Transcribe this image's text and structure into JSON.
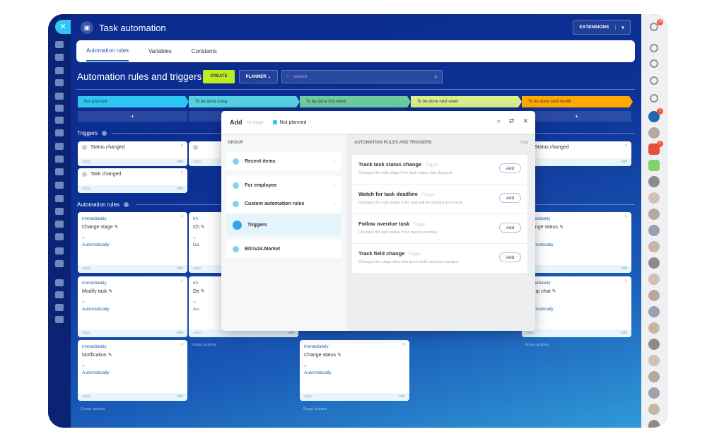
{
  "header": {
    "title": "Task automation",
    "extensions_label": "EXTENSIONS",
    "close_icon": "close-icon"
  },
  "tabs": [
    "Automation rules",
    "Variables",
    "Constants"
  ],
  "toolbar": {
    "heading": "Automation rules and triggers",
    "create": "CREATE",
    "planner": "PLANNER",
    "search_placeholder": "search"
  },
  "stages": [
    {
      "name": "Not planned",
      "color": "#2fc6f6"
    },
    {
      "name": "To be done today",
      "color": "#55d0e0"
    },
    {
      "name": "To be done this week",
      "color": "#6ccc9e"
    },
    {
      "name": "To be done next week",
      "color": "#d9ef8a"
    },
    {
      "name": "To be done next month",
      "color": "#ffa900"
    }
  ],
  "plus": "+",
  "sections": {
    "triggers": "Triggers",
    "rules": "Automation rules"
  },
  "card_labels": {
    "copy": "copy",
    "edit": "edit",
    "to": "to",
    "group_actions": "Group actions"
  },
  "triggers": [
    {
      "col": 0,
      "row": 0,
      "name": "Status changed"
    },
    {
      "col": 0,
      "row": 1,
      "name": "Task changed"
    },
    {
      "col": 1,
      "row": 0,
      "name": ""
    },
    {
      "col": 4,
      "row": 0,
      "name": "Status changed"
    }
  ],
  "rules": [
    {
      "col": 0,
      "row": 0,
      "when": "immediately",
      "action": "Change stage",
      "mode": "Automatically"
    },
    {
      "col": 0,
      "row": 1,
      "when": "immediately",
      "action": "Modify task",
      "mode": "Automatically"
    },
    {
      "col": 0,
      "row": 2,
      "when": "immediately",
      "action": "Notification",
      "mode": "Automatically"
    },
    {
      "col": 1,
      "row": 0,
      "when": "im",
      "action": "Ch",
      "mode": "Da"
    },
    {
      "col": 1,
      "row": 1,
      "when": "im",
      "action": "De",
      "mode": "Au"
    },
    {
      "col": 2,
      "row": 2,
      "when": "immediately",
      "action": "Change status",
      "mode": "Automatically"
    },
    {
      "col": 4,
      "row": 0,
      "when": "immediately",
      "action": "Change status",
      "mode": "Automatically"
    },
    {
      "col": 4,
      "row": 1,
      "when": "immediately",
      "action": "Group chat",
      "mode": "Automatically"
    }
  ],
  "group_actions_rows": {
    "0": 3,
    "1": 2,
    "2": 3,
    "4": 2
  },
  "modal": {
    "add": "Add",
    "to_stage": "to stage",
    "stage": "Not planned",
    "group_label": "GROUP",
    "rules_label": "AUTOMATION RULES AND TRIGGERS",
    "help": "Help",
    "groups": [
      {
        "label": "Recent items",
        "icon": "history-icon"
      },
      {
        "label": "For employee",
        "icon": "employees-icon"
      },
      {
        "label": "Custom automation rules",
        "icon": "robot-icon"
      },
      {
        "label": "Triggers",
        "icon": "trigger-icon",
        "selected": true
      },
      {
        "label": "Bitrix24.Market",
        "icon": "market-icon"
      }
    ],
    "items": [
      {
        "title": "Track task status change",
        "tag": "Trigger",
        "desc": "Changes the task stage if the task status has changed.",
        "button": "Add"
      },
      {
        "title": "Watch for task deadline",
        "tag": "Trigger",
        "desc": "Changes the task status if the task will be overdue tomorrow.",
        "button": "Add"
      },
      {
        "title": "Follow overdue task",
        "tag": "Trigger",
        "desc": "Changes the task status if the task is overdue.",
        "button": "Add"
      },
      {
        "title": "Track field change",
        "tag": "Trigger",
        "desc": "Changes the stage when the item's field value(s) changes.",
        "button": "Add"
      }
    ]
  },
  "right_sidebar": {
    "help_badge": "10",
    "chat_badge": "1",
    "lock_badge": "2"
  }
}
